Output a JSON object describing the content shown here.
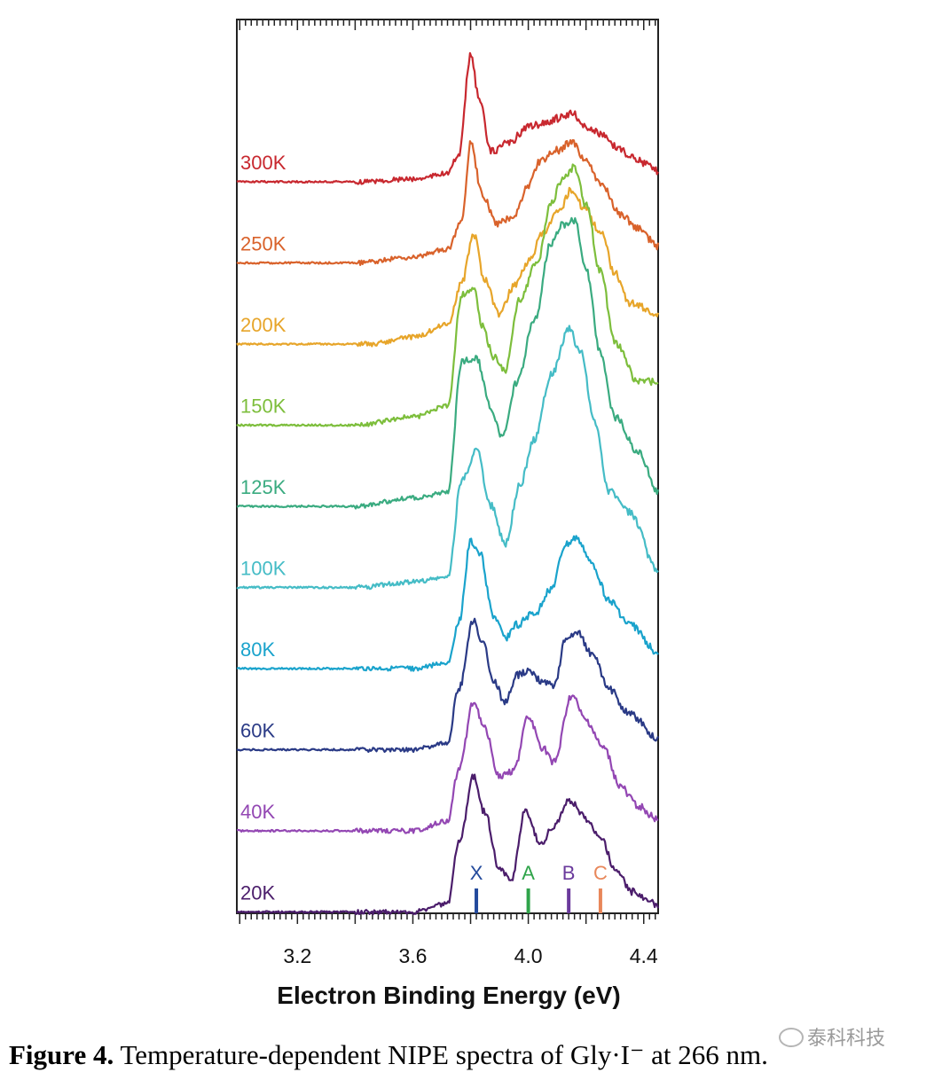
{
  "chart_data": {
    "type": "line",
    "xlabel": "Electron Binding Energy (eV)",
    "xlim": [
      2.99,
      4.45
    ],
    "x_ticks": [
      3.2,
      3.6,
      4.0,
      4.4
    ],
    "x_tick_labels": [
      "3.2",
      "3.6",
      "4.0",
      "4.4"
    ],
    "grid": false,
    "series": [
      {
        "name": "300K",
        "color": "#c8282f",
        "points": [
          [
            2.99,
            0
          ],
          [
            3.4,
            0
          ],
          [
            3.6,
            0.02
          ],
          [
            3.72,
            0.06
          ],
          [
            3.76,
            0.2
          ],
          [
            3.8,
            0.92
          ],
          [
            3.83,
            0.6
          ],
          [
            3.87,
            0.22
          ],
          [
            3.93,
            0.28
          ],
          [
            4.0,
            0.4
          ],
          [
            4.05,
            0.42
          ],
          [
            4.1,
            0.46
          ],
          [
            4.15,
            0.5
          ],
          [
            4.2,
            0.4
          ],
          [
            4.25,
            0.35
          ],
          [
            4.3,
            0.26
          ],
          [
            4.35,
            0.2
          ],
          [
            4.4,
            0.14
          ],
          [
            4.45,
            0.08
          ]
        ]
      },
      {
        "name": "250K",
        "color": "#d9622b",
        "points": [
          [
            2.99,
            0
          ],
          [
            3.4,
            0
          ],
          [
            3.6,
            0.04
          ],
          [
            3.72,
            0.1
          ],
          [
            3.77,
            0.3
          ],
          [
            3.8,
            0.88
          ],
          [
            3.84,
            0.5
          ],
          [
            3.89,
            0.28
          ],
          [
            3.95,
            0.34
          ],
          [
            4.0,
            0.56
          ],
          [
            4.04,
            0.74
          ],
          [
            4.1,
            0.82
          ],
          [
            4.15,
            0.88
          ],
          [
            4.2,
            0.74
          ],
          [
            4.26,
            0.55
          ],
          [
            4.32,
            0.35
          ],
          [
            4.38,
            0.25
          ],
          [
            4.45,
            0.12
          ]
        ]
      },
      {
        "name": "200K",
        "color": "#e7a52a",
        "points": [
          [
            2.99,
            0
          ],
          [
            3.45,
            0
          ],
          [
            3.6,
            0.05
          ],
          [
            3.72,
            0.14
          ],
          [
            3.77,
            0.45
          ],
          [
            3.81,
            0.8
          ],
          [
            3.85,
            0.46
          ],
          [
            3.9,
            0.22
          ],
          [
            3.95,
            0.42
          ],
          [
            4.0,
            0.6
          ],
          [
            4.05,
            0.8
          ],
          [
            4.1,
            0.95
          ],
          [
            4.15,
            1.12
          ],
          [
            4.19,
            1.0
          ],
          [
            4.25,
            0.82
          ],
          [
            4.3,
            0.52
          ],
          [
            4.35,
            0.3
          ],
          [
            4.45,
            0.22
          ]
        ]
      },
      {
        "name": "150K",
        "color": "#7dbe3c",
        "points": [
          [
            2.99,
            0
          ],
          [
            3.4,
            0
          ],
          [
            3.6,
            0.06
          ],
          [
            3.72,
            0.14
          ],
          [
            3.77,
            0.95
          ],
          [
            3.81,
            1.0
          ],
          [
            3.84,
            0.72
          ],
          [
            3.88,
            0.5
          ],
          [
            3.92,
            0.4
          ],
          [
            3.97,
            0.92
          ],
          [
            4.03,
            1.18
          ],
          [
            4.08,
            1.62
          ],
          [
            4.12,
            1.8
          ],
          [
            4.16,
            1.88
          ],
          [
            4.2,
            1.6
          ],
          [
            4.25,
            1.12
          ],
          [
            4.3,
            0.6
          ],
          [
            4.38,
            0.32
          ],
          [
            4.45,
            0.32
          ]
        ]
      },
      {
        "name": "125K",
        "color": "#3aab80",
        "points": [
          [
            2.99,
            0
          ],
          [
            3.4,
            0
          ],
          [
            3.6,
            0.06
          ],
          [
            3.72,
            0.1
          ],
          [
            3.77,
            1.05
          ],
          [
            3.82,
            1.08
          ],
          [
            3.87,
            0.72
          ],
          [
            3.91,
            0.5
          ],
          [
            3.96,
            0.9
          ],
          [
            4.02,
            1.35
          ],
          [
            4.08,
            1.92
          ],
          [
            4.12,
            2.05
          ],
          [
            4.16,
            2.08
          ],
          [
            4.2,
            1.72
          ],
          [
            4.25,
            1.12
          ],
          [
            4.3,
            0.65
          ],
          [
            4.38,
            0.4
          ],
          [
            4.45,
            0.1
          ]
        ]
      },
      {
        "name": "100K",
        "color": "#45bcc6",
        "points": [
          [
            2.99,
            0
          ],
          [
            3.4,
            0
          ],
          [
            3.6,
            0.04
          ],
          [
            3.72,
            0.07
          ],
          [
            3.77,
            0.78
          ],
          [
            3.82,
            1.0
          ],
          [
            3.87,
            0.6
          ],
          [
            3.92,
            0.32
          ],
          [
            3.97,
            0.74
          ],
          [
            4.02,
            1.08
          ],
          [
            4.08,
            1.55
          ],
          [
            4.14,
            1.88
          ],
          [
            4.18,
            1.72
          ],
          [
            4.23,
            1.2
          ],
          [
            4.28,
            0.7
          ],
          [
            4.35,
            0.55
          ],
          [
            4.45,
            0.12
          ]
        ]
      },
      {
        "name": "80K",
        "color": "#1aa3cc",
        "points": [
          [
            2.99,
            0
          ],
          [
            3.6,
            0
          ],
          [
            3.72,
            0.04
          ],
          [
            3.76,
            0.35
          ],
          [
            3.8,
            0.92
          ],
          [
            3.83,
            0.85
          ],
          [
            3.88,
            0.38
          ],
          [
            3.92,
            0.22
          ],
          [
            3.96,
            0.32
          ],
          [
            4.02,
            0.4
          ],
          [
            4.08,
            0.58
          ],
          [
            4.13,
            0.9
          ],
          [
            4.17,
            0.95
          ],
          [
            4.22,
            0.76
          ],
          [
            4.28,
            0.5
          ],
          [
            4.35,
            0.32
          ],
          [
            4.45,
            0.12
          ]
        ]
      },
      {
        "name": "60K",
        "color": "#2a3a86",
        "points": [
          [
            2.99,
            0
          ],
          [
            3.6,
            0
          ],
          [
            3.72,
            0.05
          ],
          [
            3.76,
            0.45
          ],
          [
            3.81,
            0.94
          ],
          [
            3.84,
            0.8
          ],
          [
            3.88,
            0.5
          ],
          [
            3.92,
            0.34
          ],
          [
            3.96,
            0.54
          ],
          [
            4.0,
            0.57
          ],
          [
            4.05,
            0.5
          ],
          [
            4.09,
            0.46
          ],
          [
            4.13,
            0.82
          ],
          [
            4.17,
            0.86
          ],
          [
            4.22,
            0.7
          ],
          [
            4.28,
            0.44
          ],
          [
            4.35,
            0.26
          ],
          [
            4.45,
            0.08
          ]
        ]
      },
      {
        "name": "40K",
        "color": "#9347b3",
        "points": [
          [
            2.99,
            0
          ],
          [
            3.6,
            0
          ],
          [
            3.72,
            0.07
          ],
          [
            3.76,
            0.45
          ],
          [
            3.81,
            0.94
          ],
          [
            3.85,
            0.74
          ],
          [
            3.9,
            0.4
          ],
          [
            3.95,
            0.44
          ],
          [
            4.0,
            0.82
          ],
          [
            4.05,
            0.6
          ],
          [
            4.09,
            0.5
          ],
          [
            4.15,
            0.98
          ],
          [
            4.2,
            0.8
          ],
          [
            4.26,
            0.6
          ],
          [
            4.32,
            0.32
          ],
          [
            4.38,
            0.18
          ],
          [
            4.45,
            0.08
          ]
        ]
      },
      {
        "name": "20K",
        "color": "#4b1d6b",
        "points": [
          [
            2.99,
            0
          ],
          [
            3.6,
            0
          ],
          [
            3.72,
            0.06
          ],
          [
            3.76,
            0.5
          ],
          [
            3.81,
            0.98
          ],
          [
            3.85,
            0.72
          ],
          [
            3.9,
            0.32
          ],
          [
            3.94,
            0.22
          ],
          [
            3.99,
            0.74
          ],
          [
            4.04,
            0.5
          ],
          [
            4.09,
            0.62
          ],
          [
            4.14,
            0.82
          ],
          [
            4.2,
            0.68
          ],
          [
            4.25,
            0.55
          ],
          [
            4.3,
            0.32
          ],
          [
            4.36,
            0.15
          ],
          [
            4.45,
            0.05
          ]
        ]
      }
    ],
    "markers": [
      {
        "label": "X",
        "x": 3.82,
        "color": "#234a9c"
      },
      {
        "label": "A",
        "x": 4.0,
        "color": "#2fa44a"
      },
      {
        "label": "B",
        "x": 4.14,
        "color": "#6a3a9c"
      },
      {
        "label": "C",
        "x": 4.25,
        "color": "#e8875a"
      }
    ]
  },
  "caption": {
    "label": "Figure 4.",
    "text": " Temperature-dependent NIPE spectra of Gly·I⁻ at 266 nm."
  },
  "watermark": "泰科科技"
}
